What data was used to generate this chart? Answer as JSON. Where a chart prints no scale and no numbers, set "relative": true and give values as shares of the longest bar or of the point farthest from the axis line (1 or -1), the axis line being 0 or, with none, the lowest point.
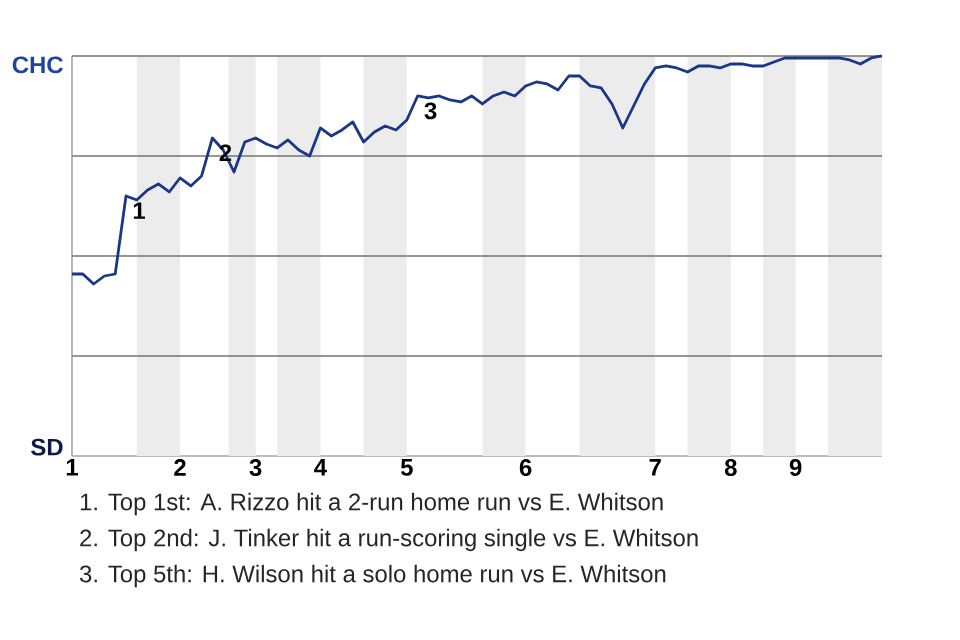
{
  "chart_data": {
    "type": "line",
    "relative": true,
    "categories": [
      "1",
      null,
      null,
      null,
      null,
      null,
      null,
      null,
      null,
      null,
      "2",
      null,
      null,
      null,
      null,
      null,
      null,
      "3",
      null,
      null,
      null,
      null,
      null,
      "4",
      null,
      null,
      null,
      null,
      null,
      null,
      null,
      "5",
      null,
      null,
      null,
      null,
      null,
      null,
      null,
      null,
      null,
      null,
      "6",
      null,
      null,
      null,
      null,
      null,
      null,
      null,
      null,
      null,
      null,
      null,
      "7",
      null,
      null,
      null,
      null,
      null,
      null,
      "8",
      null,
      null,
      null,
      null,
      null,
      "9",
      null,
      null,
      null,
      null,
      null,
      null,
      null,
      null
    ],
    "series": [
      {
        "color": "#1b3686",
        "values": [
          0.455,
          0.455,
          0.43,
          0.45,
          0.455,
          0.65,
          0.64,
          0.665,
          0.68,
          0.66,
          0.695,
          0.675,
          0.7,
          0.795,
          0.765,
          0.71,
          0.785,
          0.795,
          0.78,
          0.77,
          0.79,
          0.765,
          0.75,
          0.82,
          0.8,
          0.815,
          0.835,
          0.785,
          0.81,
          0.825,
          0.815,
          0.84,
          0.9,
          0.895,
          0.9,
          0.89,
          0.885,
          0.9,
          0.88,
          0.9,
          0.91,
          0.9,
          0.925,
          0.935,
          0.93,
          0.915,
          0.95,
          0.95,
          0.925,
          0.92,
          0.88,
          0.82,
          0.875,
          0.93,
          0.97,
          0.975,
          0.97,
          0.96,
          0.975,
          0.975,
          0.97,
          0.98,
          0.98,
          0.975,
          0.975,
          0.985,
          0.995,
          0.995,
          0.995,
          0.995,
          0.995,
          0.995,
          0.99,
          0.98,
          0.995,
          1
        ]
      }
    ],
    "grid": "y",
    "marker": "none",
    "line_style": "solid",
    "annotations": [
      "CHC",
      "SD",
      {
        "text": "1",
        "y": 0.65
      },
      {
        "text": "2",
        "y": 0.795
      },
      {
        "text": "3",
        "y": 0.9
      },
      "1. Top 1st: A. Rizzo hit a 2-run home run vs E. Whitson",
      "2. Top 2nd: J. Tinker hit a run-scoring single vs E. Whitson",
      "3. Top 5th: H. Wilson hit a solo home run vs E. Whitson"
    ]
  }
}
